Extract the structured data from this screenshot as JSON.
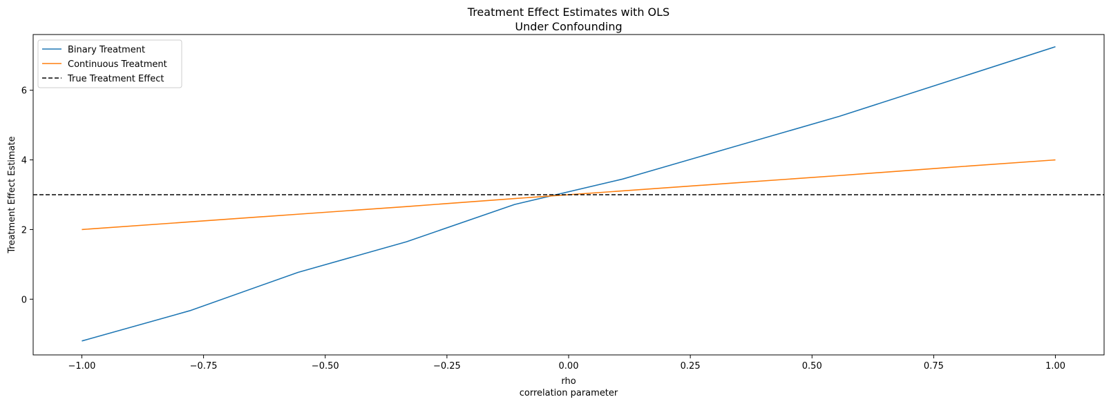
{
  "chart_data": {
    "type": "line",
    "title": [
      "Treatment Effect Estimates with OLS",
      "Under Confounding"
    ],
    "xlabel": [
      "rho",
      "correlation parameter"
    ],
    "ylabel": "Treatment Effect Estimate",
    "xlim": [
      -1.1,
      1.1
    ],
    "ylim": [
      -1.6,
      7.6
    ],
    "xticks": [
      -1.0,
      -0.75,
      -0.5,
      -0.25,
      0.0,
      0.25,
      0.5,
      0.75,
      1.0
    ],
    "xtick_labels": [
      "−1.00",
      "−0.75",
      "−0.50",
      "−0.25",
      "0.00",
      "0.25",
      "0.50",
      "0.75",
      "1.00"
    ],
    "yticks": [
      0,
      2,
      4,
      6
    ],
    "ytick_labels": [
      "0",
      "2",
      "4",
      "6"
    ],
    "grid": false,
    "legend_position": "top-left",
    "x": [
      -1.0,
      -0.778,
      -0.556,
      -0.333,
      -0.111,
      0.111,
      0.333,
      0.556,
      0.778,
      1.0
    ],
    "series": [
      {
        "name": "Binary Treatment",
        "color": "#1f77b4",
        "style": "solid",
        "values": [
          -1.2,
          -0.33,
          0.77,
          1.65,
          2.72,
          3.45,
          4.35,
          5.25,
          6.25,
          7.25
        ]
      },
      {
        "name": "Continuous Treatment",
        "color": "#ff7f0e",
        "style": "solid",
        "values": [
          2.0,
          2.22,
          2.44,
          2.66,
          2.89,
          3.11,
          3.33,
          3.55,
          3.78,
          4.0
        ]
      }
    ],
    "reference_lines": [
      {
        "name": "True Treatment Effect",
        "color": "#000000",
        "style": "dashed",
        "y": 3.0
      }
    ]
  }
}
